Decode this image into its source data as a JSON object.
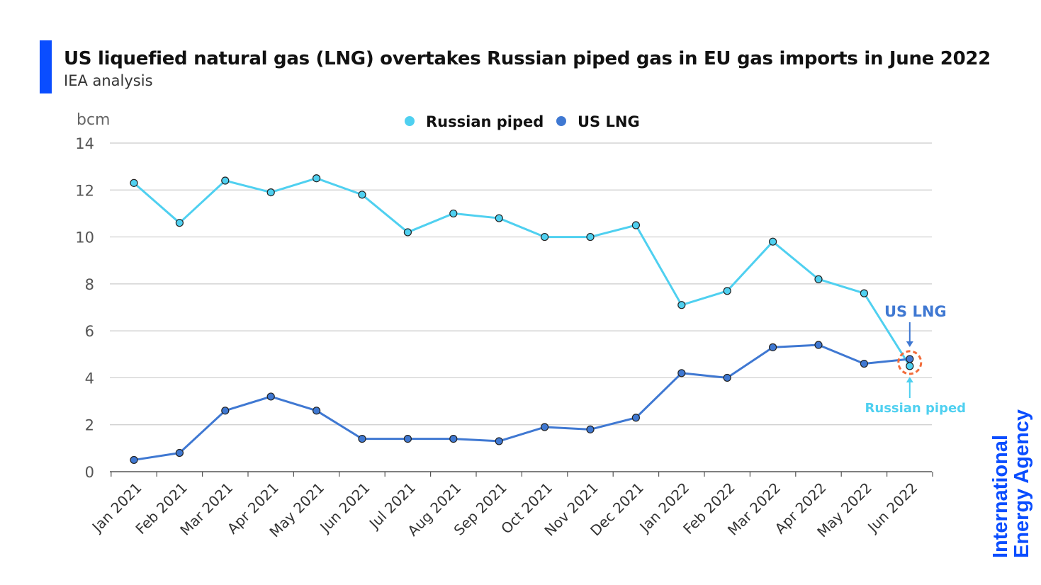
{
  "header": {
    "title": "US liquefied natural gas (LNG) overtakes Russian piped gas in EU gas imports in June 2022",
    "subtitle": "IEA analysis"
  },
  "logo": {
    "line1": "International",
    "line2": "Energy Agency",
    "color": "#0a4dff"
  },
  "colors": {
    "russian_piped": "#4fd0f0",
    "us_lng": "#3f78d2",
    "highlight_circle": "#f26c3a",
    "grid": "#cccccc",
    "accent_bar": "#0a4dff"
  },
  "chart_data": {
    "type": "line",
    "unit_label": "bcm",
    "ylim": [
      0,
      14
    ],
    "yticks": [
      0,
      2,
      4,
      6,
      8,
      10,
      12,
      14
    ],
    "grid": true,
    "legend_placement": "top",
    "categories": [
      "Jan 2021",
      "Feb 2021",
      "Mar 2021",
      "Apr 2021",
      "May 2021",
      "Jun 2021",
      "Jul 2021",
      "Aug 2021",
      "Sep 2021",
      "Oct 2021",
      "Nov 2021",
      "Dec 2021",
      "Jan 2022",
      "Feb 2022",
      "Mar 2022",
      "Apr 2022",
      "May 2022",
      "Jun 2022"
    ],
    "series": [
      {
        "name": "Russian piped",
        "values": [
          12.3,
          10.6,
          12.4,
          11.9,
          12.5,
          11.8,
          10.2,
          11.0,
          10.8,
          10.0,
          10.0,
          10.5,
          7.1,
          7.7,
          9.8,
          8.2,
          7.6,
          4.5
        ]
      },
      {
        "name": "US LNG",
        "values": [
          0.5,
          0.8,
          2.6,
          3.2,
          2.6,
          1.4,
          1.4,
          1.4,
          1.3,
          1.9,
          1.8,
          2.3,
          4.2,
          4.0,
          5.3,
          5.4,
          4.6,
          4.8
        ]
      }
    ],
    "annotations": [
      {
        "text": "US LNG",
        "series": "US LNG"
      },
      {
        "text": "Russian piped",
        "series": "Russian piped"
      }
    ]
  }
}
